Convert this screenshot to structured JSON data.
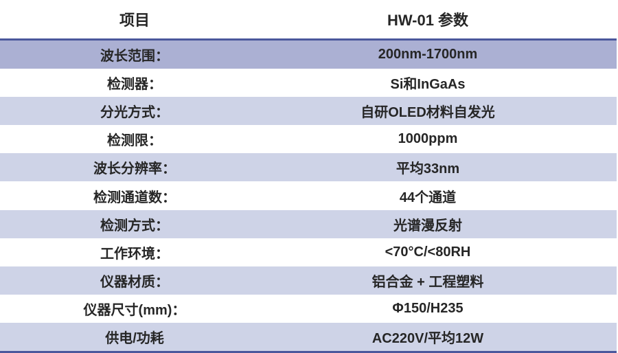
{
  "table": {
    "header": {
      "item_label": "项目",
      "param_label": "HW-01 参数"
    },
    "rows": [
      {
        "label": "波长范围：",
        "value": "200nm-1700nm"
      },
      {
        "label": "检测器：",
        "value": "Si和InGaAs"
      },
      {
        "label": "分光方式：",
        "value": "自研OLED材料自发光"
      },
      {
        "label": "检测限：",
        "value": "1000ppm"
      },
      {
        "label": "波长分辨率：",
        "value": "平均33nm"
      },
      {
        "label": "检测通道数：",
        "value": "44个通道"
      },
      {
        "label": "检测方式：",
        "value": "光谱漫反射"
      },
      {
        "label": "工作环境：",
        "value": "<70°C/<80RH"
      },
      {
        "label": "仪器材质：",
        "value": "铝合金 + 工程塑料"
      },
      {
        "label": "仪器尺寸(mm)：",
        "value": "Φ150/H235"
      },
      {
        "label": "供电/功耗",
        "value": "AC220V/平均12W"
      }
    ],
    "colors": {
      "rule_navy": "#4a579c",
      "row_dark_lavender": "#abb0d3",
      "row_light_lavender": "#ced3e7",
      "row_white": "#ffffff",
      "text": "#262626"
    }
  }
}
